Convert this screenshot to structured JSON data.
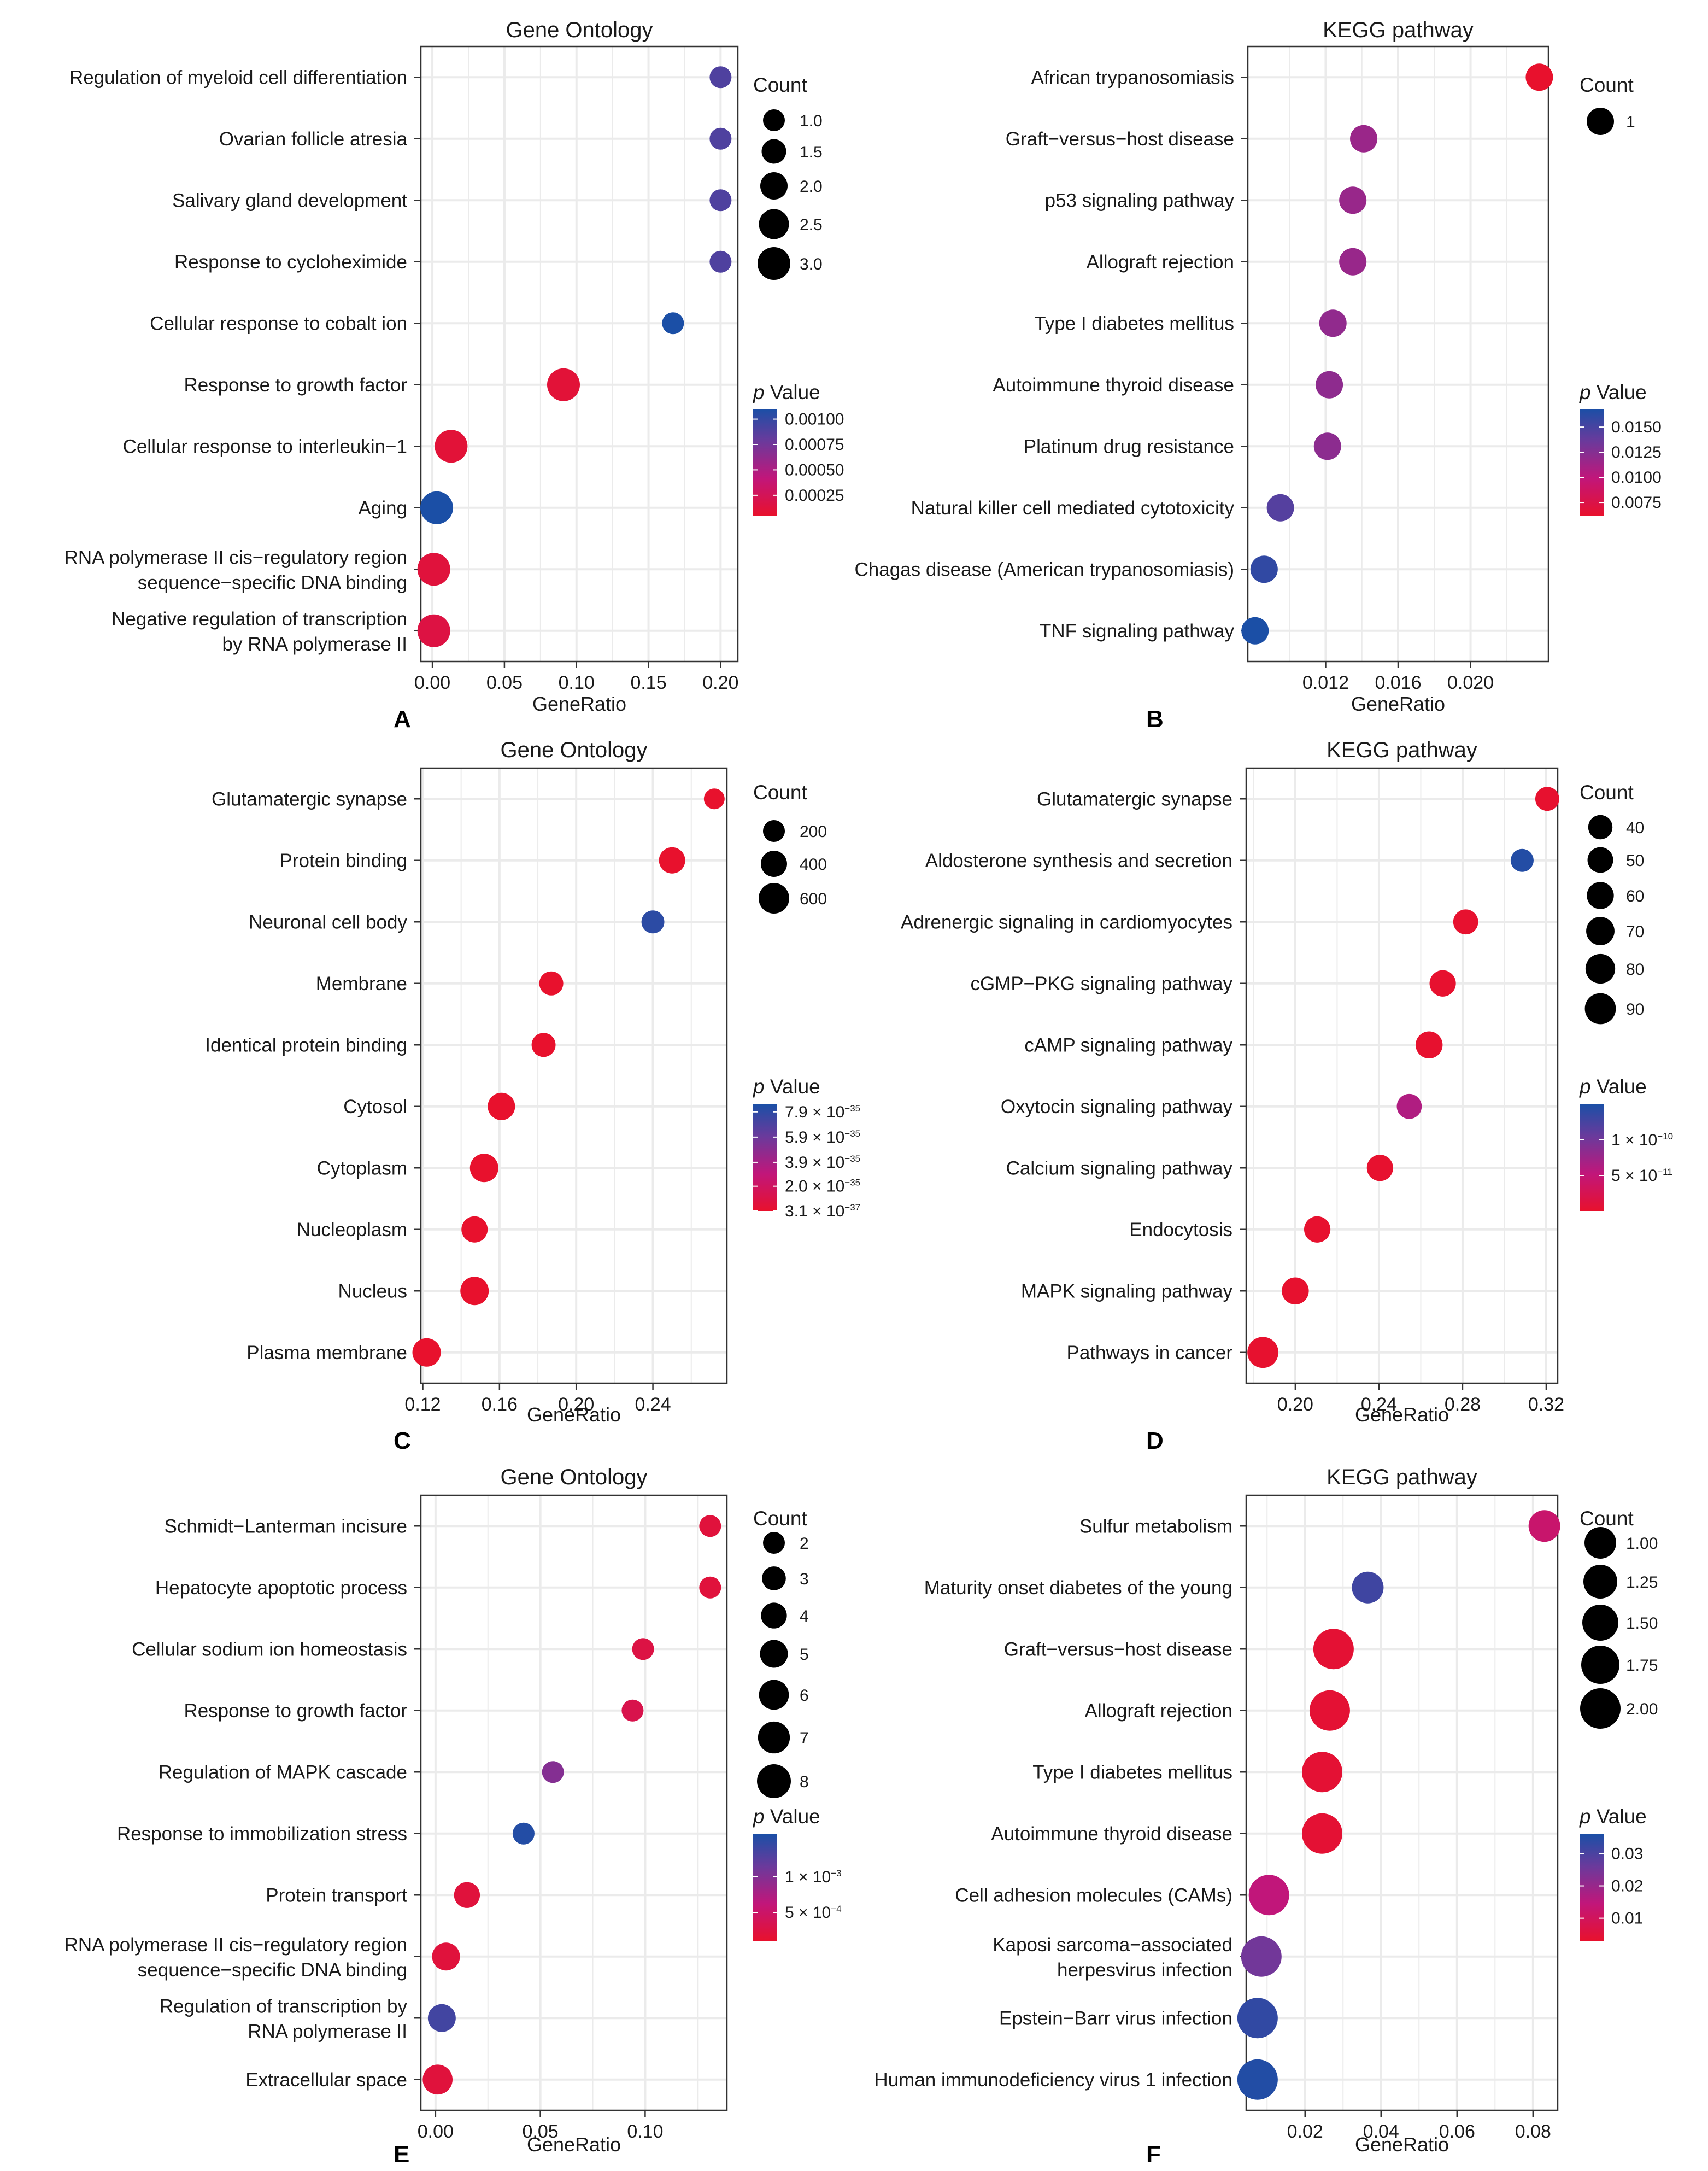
{
  "figure": {
    "background": "#ffffff",
    "grid_color": "#ebebeb",
    "gradient": [
      "#e8112d",
      "#c1167a",
      "#6a3a9c",
      "#1b4fa6"
    ]
  },
  "chart_data": [
    {
      "id": "A",
      "type": "scatter",
      "title": "Gene Ontology",
      "xlabel": "GeneRatio",
      "letter": "A",
      "xlim": [
        -0.008,
        0.212
      ],
      "xticks": [
        {
          "v": 0,
          "label": "0.00"
        },
        {
          "v": 0.05,
          "label": "0.05"
        },
        {
          "v": 0.1,
          "label": "0.10"
        },
        {
          "v": 0.15,
          "label": "0.15"
        },
        {
          "v": 0.2,
          "label": "0.20"
        }
      ],
      "categories": [
        "Regulation of myeloid cell differentiation",
        "Ovarian follicle atresia",
        "Salivary gland development",
        "Response to cycloheximide",
        "Cellular response to cobalt ion",
        "Response to growth factor",
        "Cellular response to interleukin−1",
        "Aging",
        "RNA polymerase II cis−regulatory region\nsequence−specific DNA binding",
        "Negative regulation of transcription\nby RNA polymerase II"
      ],
      "points": [
        {
          "x": 0.2,
          "count": 1,
          "p": 0.00087
        },
        {
          "x": 0.2,
          "count": 1,
          "p": 0.00087
        },
        {
          "x": 0.2,
          "count": 1,
          "p": 0.00087
        },
        {
          "x": 0.2,
          "count": 1,
          "p": 0.00087
        },
        {
          "x": 0.167,
          "count": 1,
          "p": 0.0011
        },
        {
          "x": 0.091,
          "count": 3,
          "p": 0.0001
        },
        {
          "x": 0.013,
          "count": 3,
          "p": 0.0001
        },
        {
          "x": 0.003,
          "count": 3,
          "p": 0.0011
        },
        {
          "x": 0.001,
          "count": 3,
          "p": 0.00012
        },
        {
          "x": 0.001,
          "count": 3,
          "p": 0.00015
        }
      ],
      "size_legend": {
        "title": "Count",
        "min": 1,
        "max": 3,
        "items": [
          {
            "v": 1,
            "label": "1.0"
          },
          {
            "v": 1.5,
            "label": "1.5"
          },
          {
            "v": 2,
            "label": "2.0"
          },
          {
            "v": 2.5,
            "label": "2.5"
          },
          {
            "v": 3,
            "label": "3.0"
          }
        ]
      },
      "color_legend": {
        "title_p": "p",
        "title_rest": " Value",
        "range": [
          5e-05,
          0.0011
        ],
        "ticks": [
          {
            "v": 0.001,
            "label": "0.00100"
          },
          {
            "v": 0.00075,
            "label": "0.00075"
          },
          {
            "v": 0.0005,
            "label": "0.00050"
          },
          {
            "v": 0.00025,
            "label": "0.00025"
          }
        ]
      }
    },
    {
      "id": "B",
      "type": "scatter",
      "title": "KEGG pathway",
      "xlabel": "GeneRatio",
      "letter": "B",
      "xlim": [
        0.0077,
        0.0243
      ],
      "xticks": [
        {
          "v": 0.012,
          "label": "0.012"
        },
        {
          "v": 0.016,
          "label": "0.016"
        },
        {
          "v": 0.02,
          "label": "0.020"
        }
      ],
      "categories": [
        "African trypanosomiasis",
        "Graft−versus−host disease",
        "p53 signaling pathway",
        "Allograft rejection",
        "Type I diabetes mellitus",
        "Autoimmune thyroid disease",
        "Platinum drug resistance",
        "Natural killer cell mediated cytotoxicity",
        "Chagas disease (American trypanosomiasis)",
        "TNF signaling pathway"
      ],
      "points": [
        {
          "x": 0.0238,
          "count": 1,
          "p": 0.0062
        },
        {
          "x": 0.0141,
          "count": 1,
          "p": 0.0113
        },
        {
          "x": 0.0135,
          "count": 1,
          "p": 0.0114
        },
        {
          "x": 0.0135,
          "count": 1,
          "p": 0.0114
        },
        {
          "x": 0.0124,
          "count": 1,
          "p": 0.0117
        },
        {
          "x": 0.0122,
          "count": 1,
          "p": 0.0118
        },
        {
          "x": 0.0121,
          "count": 1,
          "p": 0.0119
        },
        {
          "x": 0.0095,
          "count": 1,
          "p": 0.0142
        },
        {
          "x": 0.0086,
          "count": 1,
          "p": 0.0158
        },
        {
          "x": 0.0081,
          "count": 1,
          "p": 0.0168
        }
      ],
      "size_legend": {
        "title": "Count",
        "min": 1,
        "max": 1,
        "items": [
          {
            "v": 1,
            "label": "1"
          }
        ]
      },
      "color_legend": {
        "title_p": "p",
        "title_rest": " Value",
        "range": [
          0.0062,
          0.0168
        ],
        "ticks": [
          {
            "v": 0.015,
            "label": "0.0150"
          },
          {
            "v": 0.0125,
            "label": "0.0125"
          },
          {
            "v": 0.01,
            "label": "0.0100"
          },
          {
            "v": 0.0075,
            "label": "0.0075"
          }
        ]
      }
    },
    {
      "id": "C",
      "type": "scatter",
      "title": "Gene Ontology",
      "xlabel": "GeneRatio",
      "letter": "C",
      "xlim": [
        0.119,
        0.2786
      ],
      "xticks": [
        {
          "v": 0.12,
          "label": "0.12"
        },
        {
          "v": 0.16,
          "label": "0.16"
        },
        {
          "v": 0.2,
          "label": "0.20"
        },
        {
          "v": 0.24,
          "label": "0.24"
        }
      ],
      "categories": [
        "Glutamatergic synapse",
        "Protein binding",
        "Neuronal cell body",
        "Membrane",
        "Identical protein binding",
        "Cytosol",
        "Cytoplasm",
        "Nucleoplasm",
        "Nucleus",
        "Plasma membrane"
      ],
      "points": [
        {
          "x": 0.272,
          "count": 150,
          "p": 3.1e-37
        },
        {
          "x": 0.25,
          "count": 400,
          "p": 3.1e-37
        },
        {
          "x": 0.24,
          "count": 250,
          "p": 7.9e-35
        },
        {
          "x": 0.187,
          "count": 300,
          "p": 3.1e-37
        },
        {
          "x": 0.183,
          "count": 300,
          "p": 3.1e-37
        },
        {
          "x": 0.161,
          "count": 450,
          "p": 3.1e-37
        },
        {
          "x": 0.152,
          "count": 500,
          "p": 3.1e-37
        },
        {
          "x": 0.147,
          "count": 400,
          "p": 3.1e-37
        },
        {
          "x": 0.147,
          "count": 500,
          "p": 3.1e-37
        },
        {
          "x": 0.122,
          "count": 500,
          "p": 3.1e-37
        }
      ],
      "size_legend": {
        "title": "Count",
        "min": 150,
        "max": 650,
        "items": [
          {
            "v": 200,
            "label": "200"
          },
          {
            "v": 400,
            "label": "400"
          },
          {
            "v": 600,
            "label": "600"
          }
        ]
      },
      "color_legend": {
        "title_p": "p",
        "title_rest": " Value",
        "range": [
          3.1e-37,
          8.5e-35
        ],
        "ticks": [
          {
            "v": 7.9e-35,
            "m": "7.9 × 10",
            "e": "−35"
          },
          {
            "v": 5.9e-35,
            "m": "5.9 × 10",
            "e": "−35"
          },
          {
            "v": 3.9e-35,
            "m": "3.9 × 10",
            "e": "−35"
          },
          {
            "v": 2e-35,
            "m": "2.0 × 10",
            "e": "−35"
          },
          {
            "v": 3.1e-37,
            "m": "3.1 × 10",
            "e": "−37"
          }
        ]
      }
    },
    {
      "id": "D",
      "type": "scatter",
      "title": "KEGG pathway",
      "xlabel": "GeneRatio",
      "letter": "D",
      "xlim": [
        0.1765,
        0.3255
      ],
      "xticks": [
        {
          "v": 0.2,
          "label": "0.20"
        },
        {
          "v": 0.24,
          "label": "0.24"
        },
        {
          "v": 0.28,
          "label": "0.28"
        },
        {
          "v": 0.32,
          "label": "0.32"
        }
      ],
      "categories": [
        "Glutamatergic synapse",
        "Aldosterone synthesis and secretion",
        "Adrenergic signaling in cardiomyocytes",
        "cGMP−PKG signaling pathway",
        "cAMP signaling pathway",
        "Oxytocin signaling pathway",
        "Calcium signaling pathway",
        "Endocytosis",
        "MAPK signaling pathway",
        "Pathways in cancer"
      ],
      "points": [
        {
          "x": 0.3205,
          "count": 38,
          "p": 1e-12
        },
        {
          "x": 0.3085,
          "count": 30,
          "p": 1.45e-10
        },
        {
          "x": 0.2815,
          "count": 45,
          "p": 1e-12
        },
        {
          "x": 0.2705,
          "count": 55,
          "p": 1e-12
        },
        {
          "x": 0.264,
          "count": 60,
          "p": 1e-12
        },
        {
          "x": 0.2545,
          "count": 45,
          "p": 6e-11
        },
        {
          "x": 0.2405,
          "count": 55,
          "p": 1e-12
        },
        {
          "x": 0.2105,
          "count": 55,
          "p": 1e-12
        },
        {
          "x": 0.2,
          "count": 60,
          "p": 1e-12
        },
        {
          "x": 0.1845,
          "count": 90,
          "p": 1e-12
        }
      ],
      "size_legend": {
        "title": "Count",
        "min": 30,
        "max": 95,
        "items": [
          {
            "v": 40,
            "label": "40"
          },
          {
            "v": 50,
            "label": "50"
          },
          {
            "v": 60,
            "label": "60"
          },
          {
            "v": 70,
            "label": "70"
          },
          {
            "v": 80,
            "label": "80"
          },
          {
            "v": 90,
            "label": "90"
          }
        ]
      },
      "color_legend": {
        "title_p": "p",
        "title_rest": " Value",
        "range": [
          0,
          1.5e-10
        ],
        "ticks": [
          {
            "v": 1e-10,
            "m": "1 × 10",
            "e": "−10"
          },
          {
            "v": 5e-11,
            "m": "5 × 10",
            "e": "−11"
          }
        ]
      }
    },
    {
      "id": "E",
      "type": "scatter",
      "title": "Gene Ontology",
      "xlabel": "GeneRatio",
      "letter": "E",
      "xlim": [
        -0.007,
        0.139
      ],
      "xticks": [
        {
          "v": 0,
          "label": "0.00"
        },
        {
          "v": 0.05,
          "label": "0.05"
        },
        {
          "v": 0.1,
          "label": "0.10"
        }
      ],
      "categories": [
        "Schmidt−Lanterman incisure",
        "Hepatocyte apoptotic process",
        "Cellular sodium ion homeostasis",
        "Response to growth factor",
        "Regulation of MAPK cascade",
        "Response to immobilization stress",
        "Protein transport",
        "RNA polymerase II cis−regulatory region\nsequence−specific DNA binding",
        "Regulation of transcription by\nRNA polymerase II",
        "Extracellular space"
      ],
      "points": [
        {
          "x": 0.131,
          "count": 2,
          "p": 0.0002
        },
        {
          "x": 0.131,
          "count": 2,
          "p": 0.0002
        },
        {
          "x": 0.099,
          "count": 2,
          "p": 0.00025
        },
        {
          "x": 0.094,
          "count": 2,
          "p": 0.0003
        },
        {
          "x": 0.056,
          "count": 2,
          "p": 0.00095
        },
        {
          "x": 0.042,
          "count": 2,
          "p": 0.00155
        },
        {
          "x": 0.015,
          "count": 4,
          "p": 0.0002
        },
        {
          "x": 0.005,
          "count": 5,
          "p": 0.0002
        },
        {
          "x": 0.003,
          "count": 5,
          "p": 0.00135
        },
        {
          "x": 0.001,
          "count": 6,
          "p": 0.0002
        }
      ],
      "size_legend": {
        "title": "Count",
        "min": 2,
        "max": 8,
        "items": [
          {
            "v": 2,
            "label": "2"
          },
          {
            "v": 3,
            "label": "3"
          },
          {
            "v": 4,
            "label": "4"
          },
          {
            "v": 5,
            "label": "5"
          },
          {
            "v": 6,
            "label": "6"
          },
          {
            "v": 7,
            "label": "7"
          },
          {
            "v": 8,
            "label": "8"
          }
        ]
      },
      "color_legend": {
        "title_p": "p",
        "title_rest": " Value",
        "range": [
          0.0001,
          0.0016
        ],
        "ticks": [
          {
            "v": 0.001,
            "m": "1 × 10",
            "e": "−3"
          },
          {
            "v": 0.0005,
            "m": "5 × 10",
            "e": "−4"
          }
        ]
      }
    },
    {
      "id": "F",
      "type": "scatter",
      "title": "KEGG pathway",
      "xlabel": "GeneRatio",
      "letter": "F",
      "xlim": [
        0.0045,
        0.0865
      ],
      "xticks": [
        {
          "v": 0.02,
          "label": "0.02"
        },
        {
          "v": 0.04,
          "label": "0.04"
        },
        {
          "v": 0.06,
          "label": "0.06"
        },
        {
          "v": 0.08,
          "label": "0.08"
        }
      ],
      "categories": [
        "Sulfur metabolism",
        "Maturity onset diabetes of the young",
        "Graft−versus−host disease",
        "Allograft rejection",
        "Type I diabetes mellitus",
        "Autoimmune thyroid disease",
        "Cell adhesion molecules (CAMs)",
        "Kaposi sarcoma−associated\nherpesvirus infection",
        "Epstein−Barr virus infection",
        "Human immunodeficiency virus 1 infection"
      ],
      "points": [
        {
          "x": 0.083,
          "count": 1,
          "p": 0.012
        },
        {
          "x": 0.0365,
          "count": 1,
          "p": 0.031
        },
        {
          "x": 0.0275,
          "count": 2,
          "p": 0.004
        },
        {
          "x": 0.0265,
          "count": 2,
          "p": 0.004
        },
        {
          "x": 0.0245,
          "count": 2,
          "p": 0.004
        },
        {
          "x": 0.0245,
          "count": 2,
          "p": 0.004
        },
        {
          "x": 0.0105,
          "count": 2,
          "p": 0.014
        },
        {
          "x": 0.0085,
          "count": 2,
          "p": 0.024
        },
        {
          "x": 0.0075,
          "count": 2,
          "p": 0.033
        },
        {
          "x": 0.0075,
          "count": 2,
          "p": 0.035
        }
      ],
      "size_legend": {
        "title": "Count",
        "min": 1,
        "max": 2,
        "items": [
          {
            "v": 1,
            "label": "1.00"
          },
          {
            "v": 1.25,
            "label": "1.25"
          },
          {
            "v": 1.5,
            "label": "1.50"
          },
          {
            "v": 1.75,
            "label": "1.75"
          },
          {
            "v": 2,
            "label": "2.00"
          }
        ]
      },
      "color_legend": {
        "title_p": "p",
        "title_rest": " Value",
        "range": [
          0.003,
          0.036
        ],
        "ticks": [
          {
            "v": 0.03,
            "label": "0.03"
          },
          {
            "v": 0.02,
            "label": "0.02"
          },
          {
            "v": 0.01,
            "label": "0.01"
          }
        ]
      }
    }
  ]
}
